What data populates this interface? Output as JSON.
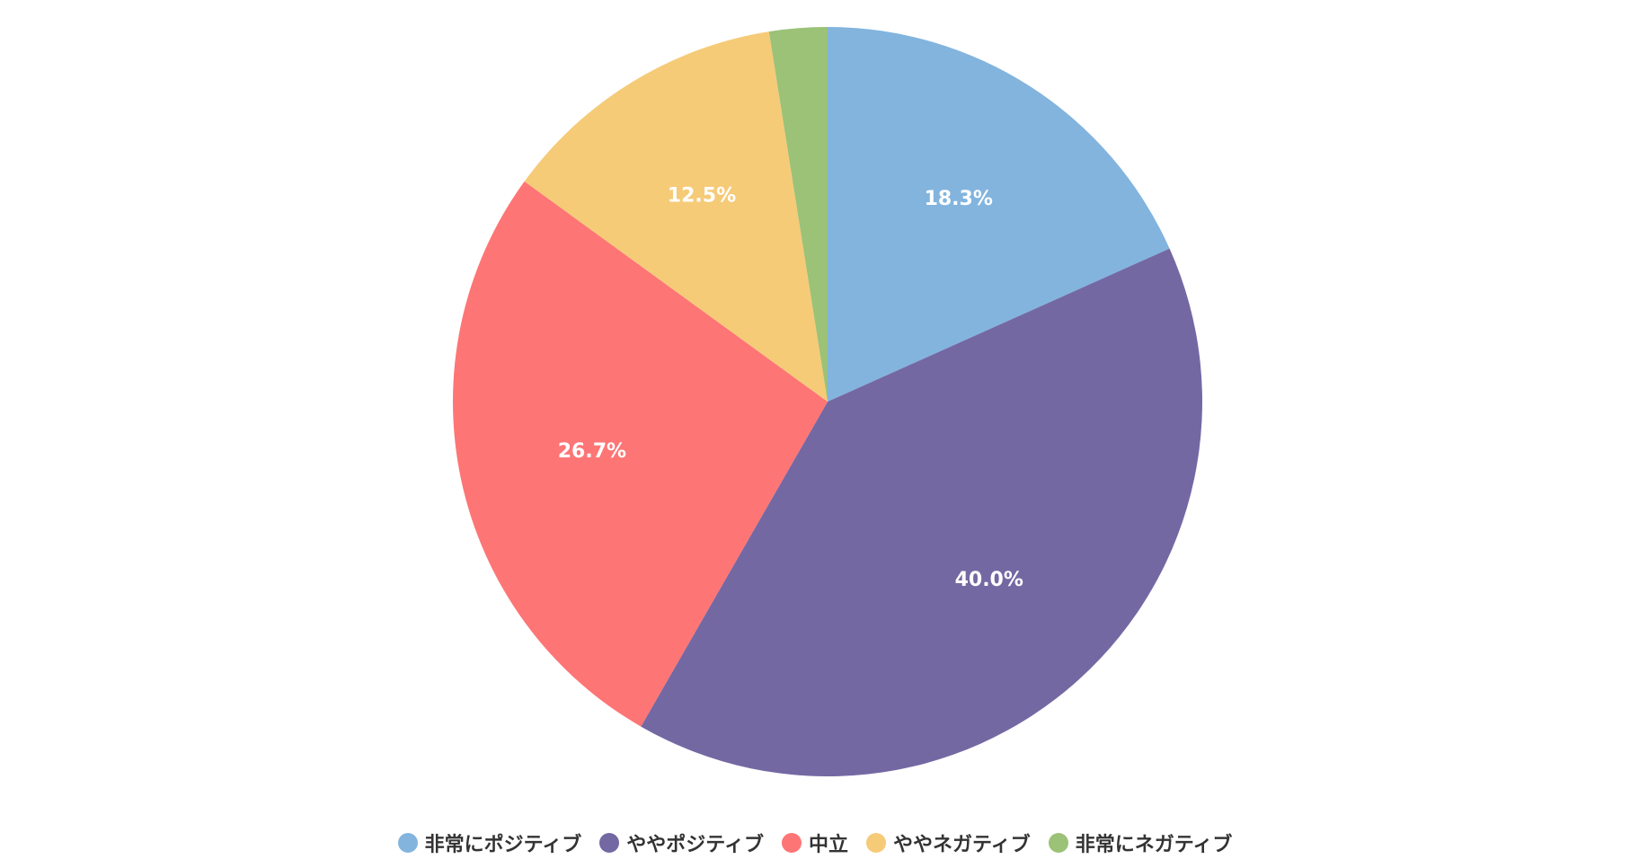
{
  "chart_data": {
    "type": "pie",
    "title": "",
    "categories": [
      "非常にポジティブ",
      "ややポジティブ",
      "中立",
      "ややネガティブ",
      "非常にネガティブ"
    ],
    "values": [
      18.3,
      40.0,
      26.7,
      12.5,
      2.5
    ],
    "value_labels": [
      "18.3%",
      "40.0%",
      "26.7%",
      "12.5%",
      ""
    ],
    "colors": [
      "#82b4de",
      "#7468a3",
      "#fe7575",
      "#f5cb78",
      "#9bc277"
    ],
    "start": "top",
    "direction": "clockwise",
    "legend_position": "bottom"
  }
}
